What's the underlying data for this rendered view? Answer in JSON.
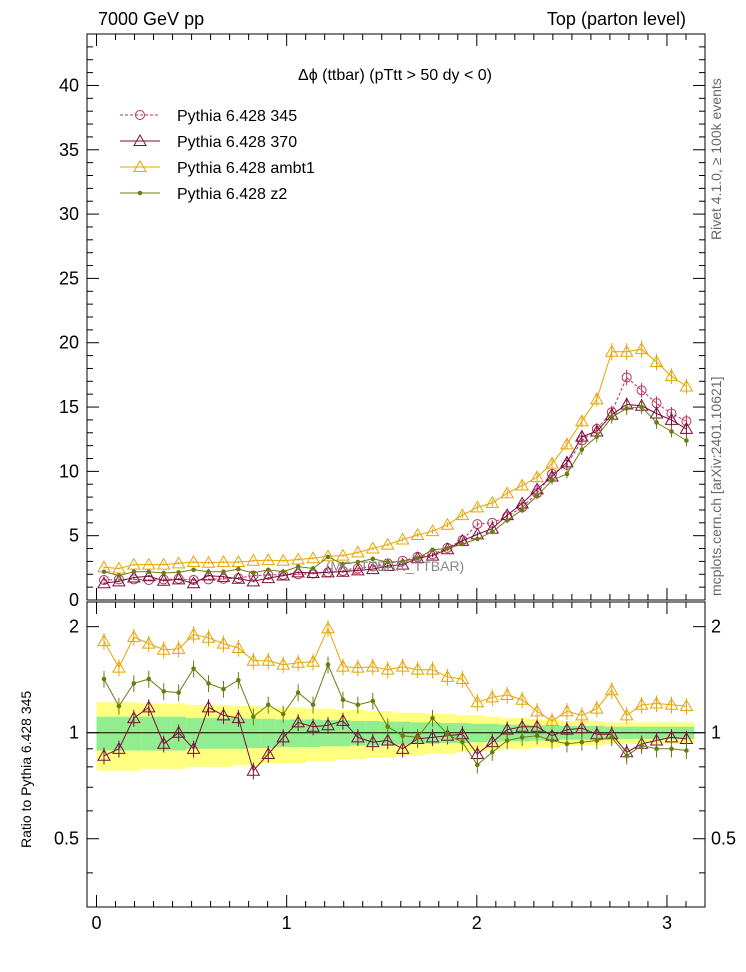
{
  "header": {
    "left": "7000 GeV pp",
    "right": "Top (parton level)",
    "side_rivet": "Rivet 4.1.0, ≥ 100k events",
    "side_site": "mcplots.cern.ch [arXiv:2401.10621]"
  },
  "colors": {
    "s345": "#b8325a",
    "s370": "#7a0f3a",
    "ambt1": "#e8a400",
    "z2": "#6b7d12",
    "band_inner": "#90ee90",
    "band_outer": "#ffff80"
  },
  "chart_data": {
    "type": "line",
    "title": "Δϕ (ttbar) (pTtt > 50 dy < 0)",
    "watermark": "(MC_TTBAR_TTBAR)",
    "xlabel": "",
    "ylabel": "",
    "ratio_ylabel": "Ratio to Pythia 6.428 345",
    "xlim": [
      -0.05,
      3.2
    ],
    "ylim": [
      0,
      44
    ],
    "ratio_ylim": [
      0.32,
      2.35
    ],
    "xticks": [
      0,
      1,
      2,
      3
    ],
    "yticks": [
      5,
      10,
      15,
      20,
      25,
      30,
      35,
      40
    ],
    "ratio_yticks": [
      0.5,
      1,
      2
    ],
    "legend_position": "top-left",
    "x": [
      0.0393,
      0.1178,
      0.1963,
      0.2749,
      0.3534,
      0.432,
      0.5105,
      0.589,
      0.6676,
      0.7461,
      0.8247,
      0.9032,
      0.9817,
      1.0603,
      1.1388,
      1.2174,
      1.2959,
      1.3744,
      1.453,
      1.5315,
      1.6101,
      1.6886,
      1.7671,
      1.8457,
      1.9242,
      2.0028,
      2.0813,
      2.1598,
      2.2384,
      2.3169,
      2.3955,
      2.474,
      2.5525,
      2.6311,
      2.7096,
      2.7882,
      2.8667,
      2.9452,
      3.0238,
      3.1023
    ],
    "series": [
      {
        "name": "Pythia 6.428 345",
        "color_key": "s345",
        "marker": "circle-open",
        "dash": "3,2",
        "values": [
          1.55,
          1.6,
          1.6,
          1.55,
          1.6,
          1.65,
          1.55,
          1.6,
          1.65,
          1.7,
          1.9,
          1.95,
          1.95,
          2.0,
          2.05,
          2.15,
          2.25,
          2.45,
          2.6,
          2.85,
          3.05,
          3.35,
          3.55,
          4.05,
          4.65,
          5.9,
          6.0,
          6.5,
          7.2,
          8.3,
          9.8,
          10.5,
          12.4,
          13.3,
          14.6,
          17.3,
          16.3,
          15.3,
          14.5,
          13.9
        ]
      },
      {
        "name": "Pythia 6.428 370",
        "color_key": "s370",
        "marker": "triangle-open",
        "dash": "",
        "values": [
          1.3,
          1.45,
          1.75,
          1.85,
          1.5,
          1.6,
          1.3,
          1.9,
          1.8,
          1.65,
          1.45,
          1.7,
          1.9,
          2.15,
          2.1,
          2.15,
          2.2,
          2.3,
          2.4,
          2.65,
          2.75,
          3.25,
          3.45,
          3.95,
          4.6,
          5.1,
          5.55,
          6.6,
          7.5,
          8.6,
          9.6,
          10.7,
          12.7,
          13.1,
          14.4,
          15.2,
          15.1,
          14.5,
          14.0,
          13.3
        ]
      },
      {
        "name": "Pythia 6.428 ambt1",
        "color_key": "ambt1",
        "marker": "triangle-open",
        "dash": "",
        "values": [
          2.55,
          2.45,
          2.75,
          2.75,
          2.75,
          2.85,
          2.95,
          2.9,
          2.95,
          2.95,
          3.05,
          3.1,
          3.05,
          3.15,
          3.25,
          3.4,
          3.45,
          3.7,
          4.0,
          4.3,
          4.7,
          5.05,
          5.35,
          5.85,
          6.6,
          7.2,
          7.55,
          8.3,
          8.9,
          9.55,
          10.6,
          12.1,
          13.9,
          15.6,
          19.3,
          19.3,
          19.5,
          18.5,
          17.4,
          16.6
        ]
      },
      {
        "name": "Pythia 6.428 z2",
        "color_key": "z2",
        "marker": "dot",
        "dash": "",
        "values": [
          2.2,
          1.9,
          2.2,
          2.2,
          2.1,
          2.15,
          2.35,
          2.2,
          2.2,
          2.4,
          2.1,
          2.35,
          2.2,
          2.6,
          2.45,
          3.35,
          2.8,
          2.95,
          3.2,
          2.95,
          3.0,
          3.25,
          3.9,
          4.0,
          4.35,
          4.75,
          5.3,
          6.2,
          7.0,
          8.1,
          9.3,
          9.8,
          11.7,
          12.7,
          14.2,
          14.9,
          15.0,
          13.8,
          13.1,
          12.4
        ]
      }
    ],
    "ratio_series": [
      {
        "name": "Pythia 6.428 370",
        "color_key": "s370",
        "marker": "triangle-open",
        "values": [
          0.86,
          0.9,
          1.1,
          1.18,
          0.93,
          1.0,
          0.9,
          1.18,
          1.12,
          1.1,
          0.78,
          0.87,
          0.97,
          1.07,
          1.04,
          1.05,
          1.08,
          0.97,
          0.94,
          0.95,
          0.9,
          0.96,
          0.97,
          0.98,
          0.99,
          0.87,
          0.94,
          1.02,
          1.04,
          1.04,
          0.98,
          1.02,
          1.03,
          0.99,
          0.99,
          0.88,
          0.93,
          0.95,
          0.97,
          0.96
        ]
      },
      {
        "name": "Pythia 6.428 ambt1",
        "color_key": "ambt1",
        "marker": "triangle-open",
        "values": [
          1.82,
          1.53,
          1.87,
          1.79,
          1.72,
          1.73,
          1.9,
          1.86,
          1.79,
          1.74,
          1.6,
          1.6,
          1.56,
          1.58,
          1.59,
          1.98,
          1.54,
          1.53,
          1.54,
          1.51,
          1.54,
          1.51,
          1.51,
          1.44,
          1.42,
          1.22,
          1.26,
          1.28,
          1.24,
          1.15,
          1.08,
          1.15,
          1.12,
          1.17,
          1.32,
          1.12,
          1.2,
          1.21,
          1.2,
          1.19
        ]
      },
      {
        "name": "Pythia 6.428 z2",
        "color_key": "z2",
        "marker": "dot",
        "values": [
          1.42,
          1.19,
          1.38,
          1.42,
          1.31,
          1.3,
          1.52,
          1.38,
          1.33,
          1.41,
          1.11,
          1.2,
          1.13,
          1.3,
          1.2,
          1.56,
          1.24,
          1.2,
          1.23,
          1.04,
          0.98,
          0.97,
          1.1,
          0.99,
          0.94,
          0.81,
          0.88,
          0.95,
          0.97,
          0.98,
          0.95,
          0.93,
          0.94,
          0.95,
          0.97,
          0.86,
          0.92,
          0.9,
          0.9,
          0.89
        ]
      }
    ],
    "ratio_band_inner": [
      0.11,
      0.11,
      0.11,
      0.11,
      0.11,
      0.11,
      0.1,
      0.1,
      0.1,
      0.1,
      0.095,
      0.095,
      0.09,
      0.09,
      0.09,
      0.085,
      0.085,
      0.08,
      0.08,
      0.075,
      0.075,
      0.07,
      0.07,
      0.065,
      0.065,
      0.06,
      0.06,
      0.055,
      0.055,
      0.05,
      0.05,
      0.045,
      0.045,
      0.045,
      0.04,
      0.04,
      0.04,
      0.04,
      0.04,
      0.04
    ],
    "ratio_band_outer": [
      0.22,
      0.22,
      0.22,
      0.21,
      0.21,
      0.21,
      0.2,
      0.2,
      0.2,
      0.19,
      0.19,
      0.18,
      0.18,
      0.18,
      0.17,
      0.17,
      0.16,
      0.16,
      0.15,
      0.15,
      0.14,
      0.14,
      0.13,
      0.13,
      0.12,
      0.12,
      0.11,
      0.1,
      0.1,
      0.09,
      0.09,
      0.08,
      0.08,
      0.08,
      0.07,
      0.07,
      0.07,
      0.07,
      0.07,
      0.07
    ]
  }
}
